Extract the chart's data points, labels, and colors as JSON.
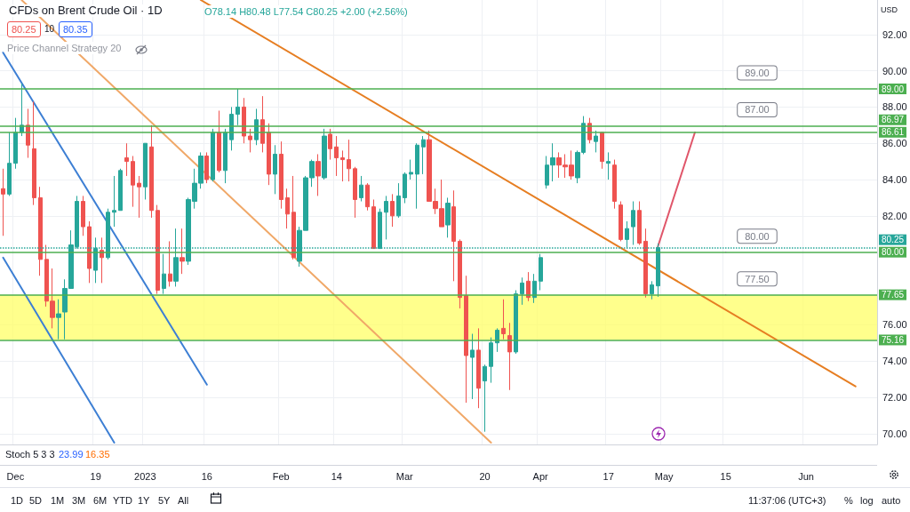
{
  "chart_data": {
    "type": "candlestick",
    "title": "CFDs on Brent Crude Oil · 1D",
    "ylabel": "USD",
    "categories": [
      null,
      null,
      "Dec",
      null,
      null,
      null,
      null,
      null,
      null,
      null,
      null,
      null,
      null,
      null,
      null,
      "19",
      null,
      null,
      null,
      null,
      null,
      null,
      null,
      "2023",
      null,
      null,
      null,
      null,
      null,
      null,
      null,
      null,
      null,
      "16",
      null,
      null,
      null,
      null,
      null,
      null,
      null,
      null,
      null,
      null,
      null,
      "Feb",
      null,
      null,
      null,
      null,
      null,
      null,
      null,
      null,
      "14",
      null,
      null,
      null,
      null,
      null,
      null,
      null,
      null,
      null,
      null,
      "Mar",
      null,
      null,
      null,
      null,
      null,
      null,
      null,
      null,
      null,
      null,
      null,
      null,
      "20",
      null,
      null,
      null,
      null,
      null,
      null,
      null,
      null,
      "Apr",
      null,
      null,
      null,
      null,
      null,
      null,
      null,
      null,
      null,
      null,
      "17",
      null,
      null,
      null,
      null,
      null,
      null,
      null,
      null,
      "May",
      null,
      null,
      null,
      null,
      null,
      null,
      null,
      null,
      null,
      "15",
      null,
      null,
      null,
      null,
      null,
      null,
      null,
      null,
      null,
      null,
      null,
      null,
      "Jun",
      null,
      null,
      null,
      null,
      null,
      null,
      null,
      null,
      null,
      null,
      null
    ],
    "ohlc": [
      [
        83.5,
        84.6,
        80.9,
        83.2
      ],
      [
        83.2,
        86.6,
        83.1,
        84.9
      ],
      [
        84.9,
        87.4,
        84.6,
        86.6
      ],
      [
        86.6,
        89.3,
        86.4,
        87.0
      ],
      [
        87.0,
        87.9,
        85.2,
        85.9
      ],
      [
        85.7,
        88.3,
        82.6,
        83.0
      ],
      [
        83.0,
        83.6,
        78.7,
        79.6
      ],
      [
        79.6,
        80.4,
        77.0,
        77.3
      ],
      [
        77.3,
        79.1,
        75.8,
        76.4
      ],
      [
        76.4,
        77.4,
        75.2,
        76.6
      ],
      [
        76.7,
        78.5,
        75.2,
        78.0
      ],
      [
        78.0,
        81.2,
        78.0,
        80.4
      ],
      [
        80.3,
        83.1,
        80.2,
        82.8
      ],
      [
        82.8,
        83.1,
        80.9,
        81.4
      ],
      [
        81.4,
        81.7,
        78.3,
        79.1
      ],
      [
        79.0,
        80.8,
        78.3,
        80.2
      ],
      [
        80.1,
        80.8,
        78.3,
        79.7
      ],
      [
        79.7,
        82.4,
        79.6,
        82.2
      ],
      [
        82.2,
        84.2,
        81.4,
        82.3
      ],
      [
        82.3,
        84.6,
        82.3,
        84.5
      ],
      [
        85.2,
        86.0,
        84.2,
        85.0
      ],
      [
        85.0,
        85.3,
        82.5,
        83.7
      ],
      [
        83.8,
        84.2,
        81.9,
        83.6
      ],
      [
        83.6,
        86.0,
        82.9,
        86.0
      ],
      [
        85.8,
        87.0,
        81.9,
        82.3
      ],
      [
        82.3,
        82.6,
        77.7,
        77.9
      ],
      [
        78.0,
        79.9,
        77.7,
        78.8
      ],
      [
        78.8,
        80.6,
        78.1,
        78.4
      ],
      [
        78.4,
        81.3,
        78.1,
        79.7
      ],
      [
        79.7,
        81.3,
        78.8,
        79.5
      ],
      [
        79.5,
        83.0,
        79.3,
        82.9
      ],
      [
        82.8,
        84.6,
        82.4,
        83.8
      ],
      [
        83.8,
        85.5,
        83.5,
        85.3
      ],
      [
        85.3,
        85.5,
        83.8,
        84.0
      ],
      [
        84.0,
        86.8,
        83.9,
        86.6
      ],
      [
        86.6,
        87.8,
        84.4,
        84.5
      ],
      [
        84.5,
        86.8,
        83.8,
        86.6
      ],
      [
        86.2,
        88.0,
        85.6,
        87.6
      ],
      [
        87.6,
        89.0,
        87.0,
        88.0
      ],
      [
        88.0,
        88.5,
        86.0,
        86.4
      ],
      [
        86.4,
        86.8,
        85.5,
        86.2
      ],
      [
        86.2,
        87.9,
        85.9,
        87.3
      ],
      [
        87.3,
        88.6,
        85.5,
        86.0
      ],
      [
        86.6,
        87.1,
        83.7,
        84.3
      ],
      [
        84.3,
        85.9,
        83.2,
        85.4
      ],
      [
        85.4,
        86.1,
        82.4,
        82.9
      ],
      [
        83.0,
        83.5,
        81.3,
        82.1
      ],
      [
        82.2,
        84.2,
        79.6,
        79.7
      ],
      [
        79.5,
        81.4,
        79.2,
        81.2
      ],
      [
        81.2,
        84.2,
        81.2,
        84.1
      ],
      [
        84.1,
        85.1,
        83.6,
        85.0
      ],
      [
        85.0,
        85.4,
        83.1,
        84.2
      ],
      [
        84.1,
        86.8,
        84.0,
        86.4
      ],
      [
        86.5,
        86.8,
        85.1,
        85.7
      ],
      [
        85.8,
        86.4,
        84.2,
        85.2
      ],
      [
        85.2,
        85.6,
        83.9,
        85.1
      ],
      [
        85.1,
        86.2,
        83.9,
        84.6
      ],
      [
        84.6,
        84.7,
        81.9,
        82.9
      ],
      [
        83.0,
        84.2,
        82.8,
        83.7
      ],
      [
        83.7,
        83.8,
        82.3,
        82.5
      ],
      [
        82.5,
        82.9,
        80.2,
        80.2
      ],
      [
        80.2,
        82.4,
        80.2,
        82.2
      ],
      [
        82.2,
        83.1,
        80.7,
        82.8
      ],
      [
        82.8,
        83.2,
        81.4,
        82.0
      ],
      [
        82.0,
        83.8,
        81.9,
        83.1
      ],
      [
        83.0,
        84.4,
        82.7,
        84.3
      ],
      [
        84.3,
        85.1,
        84.0,
        84.4
      ],
      [
        84.3,
        86.0,
        82.4,
        85.9
      ],
      [
        85.8,
        86.4,
        84.3,
        86.2
      ],
      [
        86.2,
        86.7,
        82.8,
        82.8
      ],
      [
        82.8,
        83.5,
        82.1,
        82.4
      ],
      [
        82.4,
        84.0,
        81.4,
        81.4
      ],
      [
        81.5,
        83.0,
        80.8,
        82.7
      ],
      [
        82.5,
        83.4,
        78.4,
        80.6
      ],
      [
        80.6,
        80.7,
        76.9,
        77.5
      ],
      [
        77.6,
        78.7,
        71.7,
        74.3
      ],
      [
        74.2,
        75.5,
        71.9,
        74.6
      ],
      [
        74.6,
        75.8,
        71.4,
        72.5
      ],
      [
        72.9,
        73.8,
        70.1,
        73.7
      ],
      [
        73.7,
        75.3,
        72.8,
        75.0
      ],
      [
        75.0,
        75.8,
        74.5,
        75.7
      ],
      [
        75.8,
        77.4,
        75.2,
        75.5
      ],
      [
        75.4,
        76.1,
        72.4,
        74.5
      ],
      [
        74.5,
        77.9,
        74.4,
        77.7
      ],
      [
        77.7,
        78.6,
        77.1,
        78.3
      ],
      [
        78.4,
        78.9,
        77.3,
        77.5
      ],
      [
        77.5,
        78.8,
        77.2,
        78.4
      ],
      [
        78.4,
        79.9,
        77.9,
        79.7
      ],
      [
        83.7,
        85.3,
        83.5,
        84.8
      ],
      [
        84.8,
        86.0,
        83.9,
        85.2
      ],
      [
        85.2,
        85.5,
        84.1,
        84.8
      ],
      [
        84.8,
        85.4,
        84.1,
        84.7
      ],
      [
        84.8,
        85.6,
        84.0,
        84.2
      ],
      [
        84.1,
        85.6,
        83.8,
        85.5
      ],
      [
        85.5,
        87.5,
        85.4,
        87.1
      ],
      [
        87.1,
        87.4,
        86.0,
        86.2
      ],
      [
        86.1,
        86.7,
        85.5,
        86.4
      ],
      [
        86.6,
        86.6,
        84.6,
        85.0
      ],
      [
        84.9,
        85.5,
        84.0,
        85.0
      ],
      [
        84.8,
        85.1,
        82.4,
        82.8
      ],
      [
        82.6,
        82.8,
        80.6,
        80.7
      ],
      [
        80.7,
        81.7,
        80.2,
        81.3
      ],
      [
        81.4,
        82.8,
        80.4,
        82.3
      ],
      [
        82.3,
        82.8,
        80.4,
        80.5
      ],
      [
        80.6,
        81.3,
        77.5,
        77.7
      ],
      [
        77.7,
        78.4,
        77.4,
        78.2
      ],
      [
        78.14,
        80.48,
        77.54,
        80.25
      ],
      null,
      null,
      null,
      null,
      null,
      null,
      null,
      null,
      null,
      null,
      null,
      null,
      null,
      null,
      null,
      null,
      null,
      null,
      null,
      null,
      null,
      null,
      null,
      null,
      null,
      null,
      null,
      null,
      null,
      null,
      null,
      null,
      null,
      null,
      null
    ],
    "series": [
      {
        "type": "line",
        "color": "#e67e22",
        "values": [
          null,
          null,
          null,
          null,
          null,
          null,
          null,
          null,
          null,
          null,
          null,
          null,
          null,
          null,
          null,
          null,
          null,
          null,
          null,
          null,
          null,
          null,
          null,
          null,
          null,
          null,
          null,
          null,
          null,
          null,
          null,
          null,
          93.9,
          null,
          null,
          null,
          null,
          null,
          null,
          null,
          null,
          null,
          null,
          null,
          null,
          null,
          null,
          null,
          null,
          null,
          null,
          null,
          null,
          null,
          null,
          null,
          null,
          null,
          null,
          null,
          null,
          null,
          null,
          null,
          null,
          null,
          null,
          null,
          null,
          null,
          null,
          null,
          null,
          null,
          null,
          null,
          null,
          null,
          null,
          null,
          null,
          null,
          null,
          null,
          null,
          null,
          null,
          null,
          null,
          null,
          null,
          null,
          null,
          null,
          null,
          null,
          null,
          null,
          null,
          null,
          null,
          null,
          null,
          null,
          null,
          null,
          null,
          null,
          null,
          null,
          null,
          null,
          null,
          null,
          null,
          null,
          null,
          null,
          null,
          null,
          null,
          null,
          null,
          null,
          null,
          null,
          null,
          null,
          null,
          null,
          null,
          null,
          null,
          null,
          null,
          null,
          null,
          null,
          72.6,
          null,
          null,
          null
        ]
      },
      {
        "type": "line",
        "color": "#f0a868",
        "values": [
          null,
          null,
          null,
          93.9,
          null,
          null,
          null,
          null,
          null,
          null,
          null,
          null,
          null,
          null,
          null,
          null,
          null,
          null,
          null,
          null,
          null,
          null,
          null,
          null,
          null,
          null,
          null,
          null,
          null,
          null,
          null,
          null,
          null,
          null,
          null,
          null,
          null,
          null,
          null,
          null,
          null,
          null,
          null,
          null,
          null,
          null,
          null,
          null,
          null,
          null,
          null,
          null,
          null,
          null,
          null,
          null,
          null,
          null,
          null,
          null,
          null,
          null,
          null,
          null,
          null,
          null,
          null,
          null,
          null,
          null,
          null,
          null,
          null,
          null,
          null,
          null,
          null,
          null,
          null,
          69.5,
          null,
          null,
          null,
          null,
          null,
          null,
          null,
          null,
          null,
          null,
          null,
          null,
          null,
          null,
          null,
          null,
          null,
          null,
          null,
          null,
          null,
          null,
          null,
          null,
          null,
          null,
          null,
          null,
          null,
          null,
          null,
          null,
          null,
          null,
          null,
          null,
          null,
          null,
          null,
          null,
          null,
          null,
          null,
          null,
          null,
          null,
          null,
          null,
          null,
          null,
          null,
          null,
          null,
          null,
          null,
          null,
          null,
          null,
          null,
          null,
          null,
          null
        ]
      },
      {
        "type": "line",
        "color": "#3d7fd4",
        "values": [
          91.0,
          null,
          null,
          null,
          null,
          null,
          null,
          null,
          null,
          null,
          null,
          null,
          null,
          null,
          null,
          null,
          null,
          null,
          null,
          null,
          null,
          null,
          null,
          null,
          null,
          null,
          null,
          null,
          null,
          null,
          null,
          null,
          null,
          72.7,
          null,
          null,
          null,
          null,
          null,
          null,
          null,
          null,
          null,
          null,
          null,
          null,
          null,
          null,
          null,
          null,
          null,
          null,
          null,
          null,
          null,
          null,
          null,
          null,
          null,
          null,
          null,
          null,
          null,
          null,
          null,
          null,
          null,
          null,
          null,
          null,
          null,
          null,
          null,
          null,
          null,
          null,
          null,
          null,
          null,
          null,
          null,
          null,
          null,
          null,
          null,
          null,
          null,
          null,
          null,
          null,
          null,
          null,
          null,
          null,
          null,
          null,
          null,
          null,
          null,
          null,
          null,
          null,
          null,
          null,
          null,
          null,
          null,
          null,
          null,
          null,
          null,
          null,
          null,
          null,
          null,
          null,
          null,
          null,
          null,
          null,
          null,
          null,
          null,
          null,
          null,
          null,
          null,
          null,
          null,
          null,
          null,
          null,
          null,
          null,
          null,
          null,
          null,
          null,
          null,
          null,
          null,
          null
        ]
      },
      {
        "type": "line",
        "color": "#3d7fd4",
        "values": [
          79.7,
          null,
          null,
          null,
          null,
          null,
          null,
          null,
          null,
          null,
          null,
          null,
          null,
          null,
          null,
          null,
          null,
          null,
          69.5,
          null,
          null,
          null,
          null,
          null,
          null,
          null,
          null,
          null,
          null,
          null,
          null,
          null,
          null,
          null,
          null,
          null,
          null,
          null,
          null,
          null,
          null,
          null,
          null,
          null,
          null,
          null,
          null,
          null,
          null,
          null,
          null,
          null,
          null,
          null,
          null,
          null,
          null,
          null,
          null,
          null,
          null,
          null,
          null,
          null,
          null,
          null,
          null,
          null,
          null,
          null,
          null,
          null,
          null,
          null,
          null,
          null,
          null,
          null,
          null,
          null,
          null,
          null,
          null,
          null,
          null,
          null,
          null,
          null,
          null,
          null,
          null,
          null,
          null,
          null,
          null,
          null,
          null,
          null,
          null,
          null,
          null,
          null,
          null,
          null,
          null,
          null,
          null,
          null,
          null,
          null,
          null,
          null,
          null,
          null,
          null,
          null,
          null,
          null,
          null,
          null,
          null,
          null,
          null,
          null,
          null,
          null,
          null,
          null,
          null,
          null,
          null,
          null,
          null,
          null,
          null,
          null,
          null,
          null,
          null,
          null,
          null,
          null
        ]
      },
      {
        "type": "line",
        "color": "#e0566a",
        "values": [
          null,
          null,
          null,
          null,
          null,
          null,
          null,
          null,
          null,
          null,
          null,
          null,
          null,
          null,
          null,
          null,
          null,
          null,
          null,
          null,
          null,
          null,
          null,
          null,
          null,
          null,
          null,
          null,
          null,
          null,
          null,
          null,
          null,
          null,
          null,
          null,
          null,
          null,
          null,
          null,
          null,
          null,
          null,
          null,
          null,
          null,
          null,
          null,
          null,
          null,
          null,
          null,
          null,
          null,
          null,
          null,
          null,
          null,
          null,
          null,
          null,
          null,
          null,
          null,
          null,
          null,
          null,
          null,
          null,
          null,
          null,
          null,
          null,
          null,
          null,
          null,
          null,
          null,
          null,
          null,
          null,
          null,
          null,
          null,
          null,
          null,
          null,
          null,
          null,
          null,
          null,
          null,
          null,
          null,
          null,
          null,
          null,
          null,
          null,
          null,
          null,
          null,
          null,
          null,
          null,
          null,
          80.3,
          null,
          null,
          null,
          null,
          null,
          86.6,
          null,
          null,
          null,
          null,
          null,
          null,
          null,
          null,
          null,
          null,
          null,
          null,
          null,
          null,
          null,
          null,
          null,
          null,
          null,
          null,
          null,
          null,
          null,
          null,
          null,
          null,
          null,
          null,
          null
        ]
      }
    ],
    "ylim": [
      69.4,
      93.9
    ],
    "yticks": [
      {
        "value": 70,
        "label": "70.00"
      },
      {
        "value": 72,
        "label": "72.00"
      },
      {
        "value": 74,
        "label": "74.00"
      },
      {
        "value": 76,
        "label": "76.00"
      },
      {
        "value": 82,
        "label": "82.00"
      },
      {
        "value": 84,
        "label": "84.00"
      },
      {
        "value": 86,
        "label": "86.00"
      },
      {
        "value": 88,
        "label": "88.00"
      },
      {
        "value": 90,
        "label": "90.00"
      },
      {
        "value": 92,
        "label": "92.00"
      }
    ],
    "ref_lines": [
      {
        "axis": "y",
        "value": 89.0,
        "label": "89.00",
        "color": "#4caf50"
      },
      {
        "axis": "y",
        "value": 86.97,
        "label": "86.97",
        "color": "#4caf50"
      },
      {
        "axis": "y",
        "value": 86.61,
        "label": "86.61",
        "color": "#4caf50"
      },
      {
        "axis": "y",
        "value": 80.25,
        "label": "80.25",
        "color": "#26a69a",
        "line_style": "dotted"
      },
      {
        "axis": "y",
        "value": 80.0,
        "label": "80.00",
        "color": "#4caf50"
      },
      {
        "axis": "y",
        "value": 77.65,
        "label": "77.65",
        "color": "#4caf50"
      },
      {
        "axis": "y",
        "value": 75.16,
        "label": "75.16",
        "color": "#4caf50"
      }
    ],
    "bands": [
      {
        "axis": "y",
        "from": 75.16,
        "to": 77.65,
        "color": "#ffff66"
      }
    ],
    "annotations": [
      "O78.14 H80.48 L77.54 C80.25 +2.00 (+2.56%)",
      "80.25",
      "10",
      "80.35",
      "Price Channel Strategy 20",
      "Stoch 5 3 3",
      "23.99",
      "16.35",
      "1D",
      "5D",
      "1M",
      "3M",
      "6M",
      "YTD",
      "1Y",
      "5Y",
      "All",
      "11:37:06 (UTC+3)",
      "%",
      "log",
      "auto",
      {
        "text": "89.00",
        "x": "15",
        "y": 89.0
      },
      {
        "text": "87.00",
        "x": "15",
        "y": 86.97
      },
      {
        "text": "80.00",
        "x": "15",
        "y": 80.0
      },
      {
        "text": "77.50",
        "x": "15",
        "y": 77.65
      }
    ],
    "grid": true,
    "marker": "none",
    "line_style": "solid"
  }
}
